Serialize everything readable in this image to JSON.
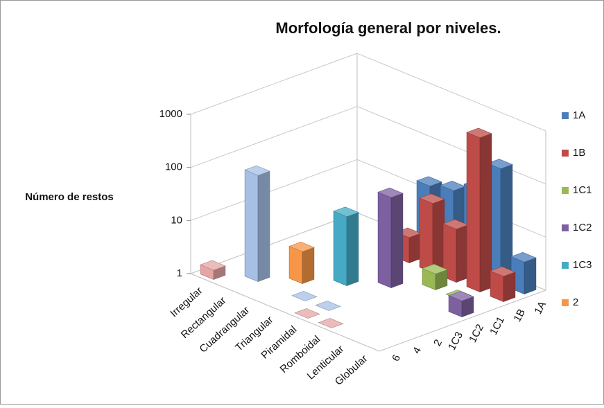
{
  "chart_data": {
    "type": "bar3d",
    "title": "Morfología general por niveles.",
    "y_label": "Número de restos",
    "categories": [
      "Irregular",
      "Rectangular",
      "Cuadrangular",
      "Triangular",
      "Piramidal",
      "Romboidal",
      "Lenticular",
      "Globular"
    ],
    "series": [
      {
        "name": "1A",
        "color": "#4a7ebb",
        "values": [
          null,
          null,
          null,
          20,
          25,
          40,
          150,
          4
        ]
      },
      {
        "name": "1B",
        "color": "#be4b48",
        "values": [
          null,
          null,
          null,
          3,
          20,
          10,
          800,
          3
        ]
      },
      {
        "name": "1C1",
        "color": "#98b954",
        "values": [
          null,
          null,
          null,
          null,
          null,
          2,
          1,
          null
        ]
      },
      {
        "name": "1C2",
        "color": "#7d60a0",
        "values": [
          null,
          null,
          null,
          null,
          50,
          null,
          null,
          2
        ]
      },
      {
        "name": "1C3",
        "color": "#46aac5",
        "values": [
          null,
          null,
          null,
          20,
          null,
          null,
          null,
          null
        ]
      },
      {
        "name": "2",
        "color": "#f79646",
        "values": [
          null,
          null,
          4,
          null,
          null,
          null,
          null,
          null
        ]
      },
      {
        "name": "4",
        "color": "#a5bfe5",
        "values": [
          null,
          100,
          null,
          1,
          1,
          null,
          null,
          null
        ]
      },
      {
        "name": "6",
        "color": "#e6a5a5",
        "values": [
          1.5,
          null,
          null,
          null,
          1,
          1,
          null,
          null
        ]
      }
    ],
    "ylim": [
      1,
      1000
    ],
    "yticks": [
      1,
      10,
      100,
      1000
    ],
    "log_y": true,
    "grid": true,
    "legend": "right"
  }
}
